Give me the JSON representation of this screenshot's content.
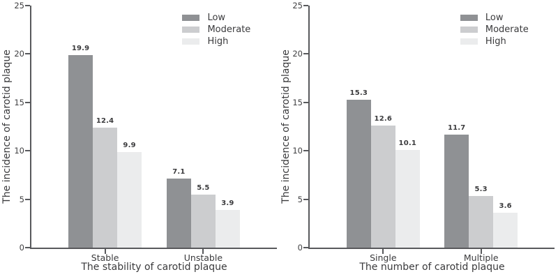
{
  "figure": {
    "background": "#ffffff"
  },
  "axis_style": {
    "spine_color": "#58595c",
    "tick_label_color": "#404042",
    "axis_label_color": "#3a3a3c",
    "value_label_color": "#3b3b3d"
  },
  "chart_data": [
    {
      "type": "bar",
      "xlabel": "The stability of carotid plaque",
      "ylabel": "The incidence of carotid plaque",
      "categories": [
        "Stable",
        "Unstable"
      ],
      "series": [
        {
          "name": "Low",
          "color": "#8f9194",
          "values": [
            19.9,
            7.1
          ]
        },
        {
          "name": "Moderate",
          "color": "#cccdcf",
          "values": [
            12.4,
            5.5
          ]
        },
        {
          "name": "High",
          "color": "#ebeced",
          "values": [
            9.9,
            3.9
          ]
        }
      ],
      "value_labels": [
        [
          "19.9",
          "7.1"
        ],
        [
          "12.4",
          "5.5"
        ],
        [
          "9.9",
          "3.9"
        ]
      ],
      "ylim": [
        0,
        25
      ],
      "yticks": [
        "0",
        "5",
        "10",
        "15",
        "20",
        "25"
      ],
      "legend_entries": [
        "Low",
        "Moderate",
        "High"
      ],
      "legend_position": "upper right",
      "grid": false
    },
    {
      "type": "bar",
      "xlabel": "The number of carotid plaque",
      "ylabel": "The incidence of carotid plaque",
      "categories": [
        "Single",
        "Multiple"
      ],
      "series": [
        {
          "name": "Low",
          "color": "#8f9194",
          "values": [
            15.3,
            11.7
          ]
        },
        {
          "name": "Moderate",
          "color": "#cccdcf",
          "values": [
            12.6,
            5.3
          ]
        },
        {
          "name": "High",
          "color": "#ebeced",
          "values": [
            10.1,
            3.6
          ]
        }
      ],
      "value_labels": [
        [
          "15.3",
          "11.7"
        ],
        [
          "12.6",
          "5.3"
        ],
        [
          "10.1",
          "3.6"
        ]
      ],
      "ylim": [
        0,
        25
      ],
      "yticks": [
        "0",
        "5",
        "10",
        "15",
        "20",
        "25"
      ],
      "legend_entries": [
        "Low",
        "Moderate",
        "High"
      ],
      "legend_position": "upper right",
      "grid": false
    }
  ]
}
